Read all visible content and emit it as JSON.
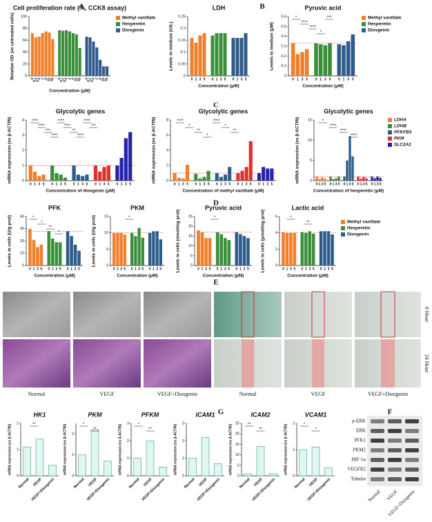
{
  "chart_data": [
    {
      "type": "bar",
      "title": "Cell proliferation rate (%, CCK8 assay)",
      "ylabel": "Relative OD (vs untreated cells)",
      "xlabel": "Concentration (μM)",
      "categories": [
        "0",
        "0.1",
        "0.5",
        "1",
        "5",
        "10",
        "50"
      ],
      "ylim": [
        0,
        100
      ],
      "yticks": [
        0,
        20,
        40,
        60,
        80,
        100
      ],
      "series": [
        {
          "name": "Methyl vanillate",
          "color": "#f07f2a",
          "values": [
            72,
            65,
            66,
            72,
            75,
            73,
            62
          ]
        },
        {
          "name": "Hesperetin",
          "color": "#3b8f3a",
          "values": [
            77,
            76,
            77,
            75,
            72,
            70,
            47
          ]
        },
        {
          "name": "Diosgenin",
          "color": "#2e5c8a",
          "values": [
            66,
            65,
            58,
            48,
            27,
            16,
            16
          ]
        }
      ],
      "legend": true,
      "annotations": []
    },
    {
      "type": "bar",
      "title": "LDH",
      "ylabel": "Levels in medium (U/L)",
      "xlabel": "Concentration (μM)",
      "categories": [
        "0",
        "1",
        "3",
        "5"
      ],
      "ylim": [
        0,
        0.25
      ],
      "yticks": [
        0,
        0.05,
        0.1,
        0.15,
        0.2,
        0.25
      ],
      "series": [
        {
          "name": "Methyl vanillate",
          "color": "#f07f2a",
          "values": [
            0.16,
            0.14,
            0.17,
            0.18
          ]
        },
        {
          "name": "Hesperetin",
          "color": "#3b8f3a",
          "values": [
            0.17,
            0.18,
            0.18,
            0.18
          ]
        },
        {
          "name": "Diosgenin",
          "color": "#2e5c8a",
          "values": [
            0.16,
            0.16,
            0.16,
            0.18
          ]
        }
      ],
      "legend": false,
      "annotations": []
    },
    {
      "type": "bar",
      "title": "Pyruvic acid",
      "ylabel": "Levels in medium (μM)",
      "xlabel": "Concentration (μM)",
      "categories": [
        "0",
        "1",
        "3",
        "5"
      ],
      "ylim": [
        0,
        0.6
      ],
      "yticks": [
        0,
        0.1,
        0.2,
        0.3,
        0.4,
        0.5,
        0.6
      ],
      "reference_line": 0.33,
      "series": [
        {
          "name": "Methyl vanillate",
          "color": "#f07f2a",
          "values": [
            0.33,
            0.22,
            0.24,
            0.27
          ]
        },
        {
          "name": "Hesperetin",
          "color": "#3b8f3a",
          "values": [
            0.33,
            0.32,
            0.31,
            0.33
          ]
        },
        {
          "name": "Diosgenin",
          "color": "#2e5c8a",
          "values": [
            0.32,
            0.31,
            0.35,
            0.42
          ]
        }
      ],
      "legend": true,
      "annotations": [
        "*",
        "****",
        "****",
        "*",
        "***"
      ]
    },
    {
      "type": "bar",
      "title": "Glycolytic genes",
      "ylabel": "mRNA expression (vs β-ACTIN)",
      "xlabel": "Concentration of diosgenin (μM)",
      "categories": [
        "0",
        "1",
        "3",
        "5"
      ],
      "ylim": [
        0,
        4
      ],
      "yticks": [
        0,
        1,
        2,
        3,
        4
      ],
      "reference_line": 1,
      "series": [
        {
          "name": "LDHA",
          "color": "#f07f2a",
          "values": [
            1,
            0.6,
            0.3,
            0.4
          ]
        },
        {
          "name": "LDHB",
          "color": "#3b8f3a",
          "values": [
            1,
            0.5,
            0.4,
            0.2
          ]
        },
        {
          "name": "PFKFB3",
          "color": "#2e5c8a",
          "values": [
            1,
            0.4,
            0.3,
            0.4
          ]
        },
        {
          "name": "PKM",
          "color": "#e0302c",
          "values": [
            1,
            0.6,
            0.9,
            1
          ]
        },
        {
          "name": "SLC2A1",
          "color": "#2424a8",
          "values": [
            1,
            1.5,
            2.8,
            3.2
          ]
        }
      ],
      "legend": false,
      "annotations": [
        "****",
        "****",
        "***",
        "****",
        "****",
        "****",
        "**",
        "****",
        "****",
        "***"
      ]
    },
    {
      "type": "bar",
      "title": "Glycolytic genes",
      "ylabel": "mRNA expression (vs β-ACTIN)",
      "xlabel": "Concentration of methyl vanillate (μM)",
      "categories": [
        "0",
        "1",
        "3",
        "5"
      ],
      "ylim": [
        0,
        8
      ],
      "yticks": [
        0,
        2,
        4,
        6,
        8
      ],
      "reference_line": 1,
      "series": [
        {
          "name": "LDHA",
          "color": "#f07f2a",
          "values": [
            1,
            0.4,
            0.3,
            2.1
          ]
        },
        {
          "name": "LDHB",
          "color": "#3b8f3a",
          "values": [
            0.9,
            0.3,
            0.5,
            1.3
          ]
        },
        {
          "name": "PFKFB3",
          "color": "#2e5c8a",
          "values": [
            1,
            0.5,
            0.8,
            1.8
          ]
        },
        {
          "name": "PKM",
          "color": "#e0302c",
          "values": [
            1,
            1.3,
            1.8,
            5.2
          ]
        },
        {
          "name": "SLC2A1",
          "color": "#2424a8",
          "values": [
            1,
            1.8,
            1.6,
            1.6
          ]
        }
      ],
      "legend": false,
      "annotations": [
        "****",
        "*",
        "**",
        "*",
        "****",
        "*",
        "**"
      ]
    },
    {
      "type": "bar",
      "title": "Glycolytic genes",
      "ylabel": "mRNA expression (vs β-ACTIN)",
      "xlabel": "Concentration of hesperetin (μM)",
      "categories": [
        "0",
        "1",
        "3",
        "5"
      ],
      "ylim": [
        0,
        15
      ],
      "yticks": [
        0,
        5,
        10,
        15
      ],
      "reference_line": 1,
      "series": [
        {
          "name": "LDHA",
          "color": "#f07f2a",
          "values": [
            1,
            0.4,
            0.8,
            0.5
          ]
        },
        {
          "name": "LDHB",
          "color": "#3b8f3a",
          "values": [
            1,
            0.4,
            0.6,
            1
          ]
        },
        {
          "name": "PFKFB3",
          "color": "#2e5c8a",
          "values": [
            1,
            5,
            11,
            6
          ]
        },
        {
          "name": "PKM",
          "color": "#e0302c",
          "values": [
            1,
            0.5,
            0.9,
            0.6
          ]
        },
        {
          "name": "SLC2A1",
          "color": "#2424a8",
          "values": [
            1,
            0.6,
            1,
            0.7
          ]
        }
      ],
      "legend": true,
      "annotations": [
        "*",
        "****",
        "****",
        "****"
      ]
    },
    {
      "type": "bar",
      "title": "PFK",
      "ylabel": "Levels in cells (U/g prot)",
      "xlabel": "Concentration (μM)",
      "categories": [
        "0",
        "1",
        "3",
        "5"
      ],
      "ylim": [
        0,
        40
      ],
      "yticks": [
        0,
        10,
        20,
        30,
        40
      ],
      "reference_line": 28,
      "series": [
        {
          "name": "Methyl vanillate",
          "color": "#f07f2a",
          "values": [
            30,
            21,
            15,
            17
          ]
        },
        {
          "name": "Hesperetin",
          "color": "#3b8f3a",
          "values": [
            28,
            22,
            19,
            19
          ]
        },
        {
          "name": "Diosgenin",
          "color": "#2e5c8a",
          "values": [
            28,
            24,
            17,
            12
          ]
        }
      ],
      "legend": false,
      "annotations": [
        "*",
        "*",
        "**",
        "*"
      ]
    },
    {
      "type": "bar",
      "title": "PKM",
      "ylabel": "Levels in cells (U/g prot)",
      "xlabel": "Concentration (μM)",
      "categories": [
        "0",
        "1",
        "3",
        "5"
      ],
      "ylim": [
        0,
        15
      ],
      "yticks": [
        0,
        5,
        10,
        15
      ],
      "reference_line": 10,
      "series": [
        {
          "name": "Methyl vanillate",
          "color": "#f07f2a",
          "values": [
            10,
            10,
            10,
            9.5
          ]
        },
        {
          "name": "Hesperetin",
          "color": "#3b8f3a",
          "values": [
            10,
            9,
            11.5,
            8.5
          ]
        },
        {
          "name": "Diosgenin",
          "color": "#2e5c8a",
          "values": [
            10,
            10.5,
            10.5,
            8
          ]
        }
      ],
      "legend": false,
      "annotations": [
        "*"
      ]
    },
    {
      "type": "bar",
      "title": "Pyruvic acid",
      "ylabel": "Levels in cells (nmol/mg prot)",
      "xlabel": "Concentration (μM)",
      "categories": [
        "0",
        "1",
        "3",
        "5"
      ],
      "ylim": [
        0,
        25
      ],
      "yticks": [
        0,
        5,
        10,
        15,
        20,
        25
      ],
      "reference_line": 17,
      "series": [
        {
          "name": "Methyl vanillate",
          "color": "#f07f2a",
          "values": [
            18,
            17,
            14,
            14
          ]
        },
        {
          "name": "Hesperetin",
          "color": "#3b8f3a",
          "values": [
            17,
            16,
            14,
            13
          ]
        },
        {
          "name": "Diosgenin",
          "color": "#2e5c8a",
          "values": [
            17,
            16,
            15,
            14
          ]
        }
      ],
      "legend": false,
      "annotations": [
        "*"
      ]
    },
    {
      "type": "bar",
      "title": "Lactic acid",
      "ylabel": "Levels in cells (μmol/mg prot)",
      "xlabel": "Concentration (μM)",
      "categories": [
        "0",
        "1",
        "3",
        "5"
      ],
      "ylim": [
        0,
        6
      ],
      "yticks": [
        0,
        2,
        4,
        6
      ],
      "reference_line": 4,
      "series": [
        {
          "name": "Methyl vanillate",
          "color": "#f07f2a",
          "values": [
            4.1,
            4,
            4,
            4
          ]
        },
        {
          "name": "Hesperetin",
          "color": "#3b8f3a",
          "values": [
            4.1,
            4,
            4.2,
            3.9
          ]
        },
        {
          "name": "Diosgenin",
          "color": "#2e5c8a",
          "values": [
            4.2,
            4.2,
            4.2,
            3.8
          ]
        }
      ],
      "legend": true,
      "annotations": [
        "*",
        "**"
      ]
    },
    {
      "type": "bar",
      "title": "HK1",
      "ylabel": "mRNA expression (vs β-ACTIN)",
      "categories": [
        "Normal",
        "VEGF",
        "VEGF+Diosgenin"
      ],
      "ylim": [
        0,
        2
      ],
      "yticks": [
        0,
        1,
        2
      ],
      "series": [
        {
          "color": "#dff6f1",
          "values": [
            1.1,
            1.4,
            0.4
          ]
        }
      ],
      "legend": false,
      "annotations": [
        "**"
      ]
    },
    {
      "type": "bar",
      "title": "PKM",
      "ylabel": "mRNA expression (vs β-ACTIN)",
      "categories": [
        "Normal",
        "VEGF",
        "VEGF+Diosgenin"
      ],
      "ylim": [
        0,
        2.5
      ],
      "yticks": [
        0,
        1,
        2
      ],
      "series": [
        {
          "color": "#dff6f1",
          "values": [
            1,
            2.2,
            0.7
          ]
        }
      ],
      "legend": false,
      "annotations": [
        "*",
        "**"
      ]
    },
    {
      "type": "bar",
      "title": "PFKM",
      "ylabel": "mRNA expression (vs β-ACTIN)",
      "categories": [
        "Normal",
        "VEGF",
        "VEGF+Diosgenin"
      ],
      "ylim": [
        0,
        3
      ],
      "yticks": [
        0,
        1,
        2,
        3
      ],
      "series": [
        {
          "color": "#dff6f1",
          "values": [
            1,
            2,
            0.5
          ]
        }
      ],
      "legend": false,
      "annotations": [
        "*",
        "**"
      ]
    },
    {
      "type": "bar",
      "title": "ICAM1",
      "ylabel": "mRNA expression (vs β-ACTIN)",
      "categories": [
        "Normal",
        "VEGF",
        "VEGF+Diosgenin"
      ],
      "ylim": [
        0,
        3
      ],
      "yticks": [
        0,
        1,
        2,
        3
      ],
      "series": [
        {
          "color": "#dff6f1",
          "values": [
            1,
            2.2,
            0.7
          ]
        }
      ],
      "legend": false,
      "annotations": []
    },
    {
      "type": "bar",
      "title": "ICAM2",
      "ylabel": "mRNA expression (vs β-ACTIN)",
      "categories": [
        "Normal",
        "VEGF",
        "VEGF+Diosgenin"
      ],
      "ylim": [
        0,
        25
      ],
      "yticks": [
        0,
        5,
        10,
        15,
        20,
        25
      ],
      "series": [
        {
          "color": "#dff6f1",
          "values": [
            1,
            14,
            1
          ]
        }
      ],
      "legend": false,
      "annotations": [
        "**",
        "**"
      ]
    },
    {
      "type": "bar",
      "title": "VCAM1",
      "ylabel": "mRNA expression (vs β-ACTIN)",
      "categories": [
        "Normal",
        "VEGF",
        "VEGF+Diosgenin"
      ],
      "ylim": [
        0,
        2
      ],
      "yticks": [
        0,
        1,
        2
      ],
      "series": [
        {
          "color": "#dff6f1",
          "values": [
            1,
            1.1,
            0.3
          ]
        }
      ],
      "legend": false,
      "annotations": [
        "*",
        "*"
      ]
    }
  ],
  "panel_labels": [
    "A",
    "B",
    "C",
    "D",
    "E",
    "F",
    "G"
  ],
  "images": {
    "columns": [
      "Normal",
      "VEGF",
      "VEGF+Diosgenin",
      "Normal",
      "VEGF",
      "VEGF+Diosgenin"
    ],
    "rows": [
      "0 Hour",
      "24 Hour"
    ]
  },
  "blot": {
    "proteins": [
      "p-ERK",
      "ERK",
      "PFK1",
      "PKM2",
      "HIF-1α",
      "VEGFR2",
      "Tubulin"
    ],
    "lanes": [
      "Normal",
      "VEGF",
      "VEGF+Diosgenin"
    ]
  }
}
